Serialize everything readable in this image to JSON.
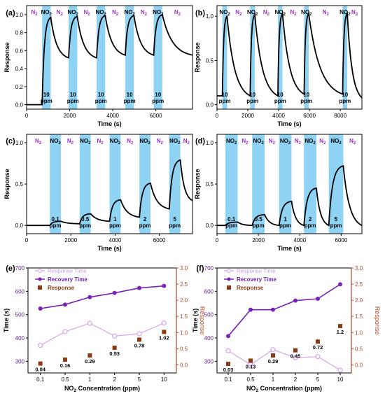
{
  "panels": [
    {
      "label": "(a)",
      "ylabel": "Response",
      "xlabel": "Time (s)",
      "xticks": [
        "0",
        "2000",
        "4000",
        "6000"
      ],
      "yticks": [
        "0.0",
        "0.2",
        "0.4",
        "0.6",
        "0.8",
        "1.0"
      ],
      "gas_labels": [
        "N2",
        "NO2",
        "N2",
        "NO2",
        "N2",
        "NO2",
        "N2",
        "NO2",
        "N2",
        "NO2",
        "N2"
      ],
      "band_labels": [
        "10 ppm",
        "10 ppm",
        "10 ppm",
        "10 ppm",
        "10 ppm"
      ]
    },
    {
      "label": "(b)",
      "ylabel": "Response",
      "xlabel": "Time (s)",
      "xticks": [
        "0",
        "2000",
        "4000",
        "6000",
        "8000"
      ],
      "yticks": [
        "0.0",
        "0.5",
        "1.0"
      ],
      "gas_labels": [
        "NO2",
        "N2",
        "NO2",
        "N2",
        "NO2",
        "N2",
        "NO2",
        "N2",
        "NO2",
        "N2",
        "NO2"
      ],
      "band_labels": [
        "10 ppm",
        "10 ppm",
        "10 ppm",
        "10 ppm",
        "10 ppm"
      ]
    },
    {
      "label": "(c)",
      "ylabel": "Response",
      "xlabel": "Time (s)",
      "xticks": [
        "0",
        "2000",
        "4000",
        "6000"
      ],
      "yticks": [
        "0.0",
        "0.5",
        "1.0"
      ],
      "gas_labels": [
        "N2",
        "NO2",
        "N2",
        "NO2",
        "N2",
        "NO2",
        "N2",
        "NO2",
        "N2",
        "NO2",
        "N2"
      ],
      "band_labels": [
        "0.1 ppm",
        "0.5 ppm",
        "1 ppm",
        "2 ppm",
        "5 ppm"
      ]
    },
    {
      "label": "(d)",
      "ylabel": "Response",
      "xlabel": "Time (s)",
      "xticks": [
        "0",
        "2000",
        "4000",
        "6000"
      ],
      "yticks": [
        "0.0",
        "0.5",
        "1.0"
      ],
      "gas_labels": [
        "NO2",
        "N2",
        "NO2",
        "N2",
        "NO2",
        "N2",
        "NO2",
        "N2",
        "NO2",
        "N2"
      ],
      "band_labels": [
        "0.1 ppm",
        "0.5 ppm",
        "1 ppm",
        "2 ppm",
        "5 ppm"
      ]
    },
    {
      "label": "(e)",
      "ylabel_left": "Time (s)",
      "ylabel_right": "Response",
      "xlabel": "NO2 Concentration (ppm)",
      "legend": [
        "Response Time",
        "Recovery Time",
        "Response"
      ],
      "yticks_left": [
        "300",
        "400",
        "500",
        "600",
        "700"
      ],
      "yticks_right": [
        "0.0",
        "0.5",
        "1.0",
        "1.5",
        "2.0",
        "2.5",
        "3.0"
      ],
      "value_labels": [
        "0.04",
        "0.16",
        "0.29",
        "0.53",
        "0.78",
        "1.02"
      ]
    },
    {
      "label": "(f)",
      "ylabel_left": "Time (s)",
      "ylabel_right": "Response",
      "xlabel": "NO2 Concentration (ppm)",
      "legend": [
        "Response Time",
        "Recovery Time",
        "Response"
      ],
      "yticks_left": [
        "300",
        "400",
        "500",
        "600",
        "700"
      ],
      "yticks_right": [
        "0.0",
        "0.5",
        "1.0",
        "1.5",
        "2.0",
        "2.5",
        "3.0"
      ],
      "value_labels": [
        "0.03",
        "0.13",
        "0.29",
        "0.45",
        "0.72",
        "1.2"
      ]
    }
  ],
  "chart_data": [
    {
      "panel": "(a)",
      "type": "line",
      "xlim": [
        0,
        7700
      ],
      "ylim": [
        -0.05,
        1.1
      ],
      "no2_intervals": [
        [
          720,
          1120
        ],
        [
          1950,
          2350
        ],
        [
          3250,
          3650
        ],
        [
          4580,
          4980
        ],
        [
          5900,
          6300
        ]
      ],
      "baseline": 0.0,
      "peaks": [
        0.97,
        0.98,
        0.99,
        0.99,
        1.0
      ],
      "valleys": [
        0.52,
        0.52,
        0.55,
        0.55,
        0.55
      ],
      "line_color": "#000000",
      "band_color": "#8fd3f4"
    },
    {
      "panel": "(b)",
      "type": "line",
      "xlim": [
        0,
        9400
      ],
      "ylim": [
        -0.05,
        1.12
      ],
      "no2_intervals": [
        [
          350,
          650
        ],
        [
          2150,
          2450
        ],
        [
          3950,
          4250
        ],
        [
          5650,
          5950
        ],
        [
          8150,
          8450
        ]
      ],
      "baseline": 0.1,
      "peaks": [
        1.0,
        1.02,
        1.03,
        1.03,
        1.03
      ],
      "valleys": [
        0.1,
        0.1,
        0.12,
        0.12,
        0.08
      ],
      "line_color": "#000000",
      "band_color": "#8fd3f4"
    },
    {
      "panel": "(c)",
      "type": "line",
      "xlim": [
        0,
        7500
      ],
      "ylim": [
        -0.1,
        1.1
      ],
      "concentrations_ppm": [
        "0.1",
        "0.5",
        "1",
        "2",
        "5"
      ],
      "no2_intervals": [
        [
          1050,
          1550
        ],
        [
          2400,
          2900
        ],
        [
          3750,
          4250
        ],
        [
          5100,
          5600
        ],
        [
          6450,
          6950
        ]
      ],
      "baseline": 0.0,
      "peaks": [
        0.05,
        0.14,
        0.31,
        0.51,
        0.79
      ],
      "valleys": [
        0.02,
        0.05,
        0.1,
        0.2,
        0.3
      ],
      "line_color": "#000000",
      "band_color": "#8fd3f4"
    },
    {
      "panel": "(d)",
      "type": "line",
      "xlim": [
        0,
        7000
      ],
      "ylim": [
        -0.1,
        1.1
      ],
      "concentrations_ppm": [
        "0.1",
        "0.5",
        "1",
        "2",
        "5"
      ],
      "no2_intervals": [
        [
          400,
          1000
        ],
        [
          1700,
          2300
        ],
        [
          3000,
          3600
        ],
        [
          4200,
          4800
        ],
        [
          5400,
          6100
        ]
      ],
      "baseline": 0.0,
      "peaks": [
        0.04,
        0.13,
        0.29,
        0.45,
        0.72
      ],
      "valleys": [
        0.0,
        0.0,
        0.0,
        0.0,
        0.0
      ],
      "line_color": "#000000",
      "band_color": "#8fd3f4"
    },
    {
      "panel": "(e)",
      "type": "line",
      "categories": [
        "0.1",
        "0.5",
        "1",
        "2",
        "5",
        "10"
      ],
      "ylim_left": [
        250,
        700
      ],
      "ylim_right": [
        -0.25,
        3.0
      ],
      "series": [
        {
          "name": "Response Time",
          "axis": "left",
          "values": [
            368,
            427,
            463,
            408,
            418,
            464
          ],
          "color": "#d3a3ee"
        },
        {
          "name": "Recovery Time",
          "axis": "left",
          "values": [
            526,
            543,
            575,
            593,
            614,
            623
          ],
          "color": "#7a22b8"
        },
        {
          "name": "Response",
          "axis": "right",
          "values": [
            0.04,
            0.16,
            0.29,
            0.53,
            0.78,
            1.02
          ],
          "color": "#8b3a14"
        }
      ]
    },
    {
      "panel": "(f)",
      "type": "line",
      "categories": [
        "0.1",
        "0.5",
        "1",
        "2",
        "5",
        "10"
      ],
      "ylim_left": [
        250,
        700
      ],
      "ylim_right": [
        -0.25,
        3.0
      ],
      "series": [
        {
          "name": "Response Time",
          "axis": "left",
          "values": [
            345,
            285,
            350,
            315,
            320,
            262
          ],
          "color": "#d3a3ee"
        },
        {
          "name": "Recovery Time",
          "axis": "left",
          "values": [
            408,
            521,
            521,
            560,
            568,
            630
          ],
          "color": "#7a22b8"
        },
        {
          "name": "Response",
          "axis": "right",
          "values": [
            0.03,
            0.13,
            0.29,
            0.45,
            0.72,
            1.2
          ],
          "color": "#8b3a14"
        }
      ]
    }
  ]
}
